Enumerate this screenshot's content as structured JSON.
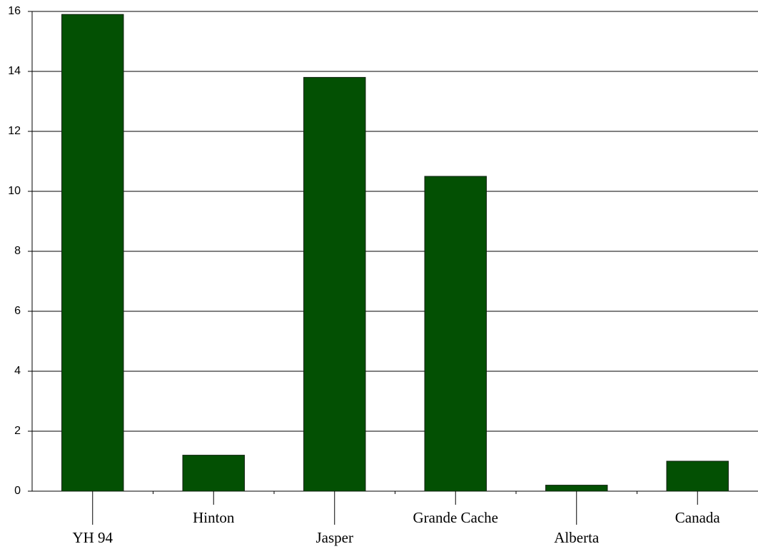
{
  "chart_data": {
    "type": "bar",
    "categories": [
      "YH 94",
      "Hinton",
      "Jasper",
      "Grande Cache",
      "Alberta",
      "Canada"
    ],
    "values": [
      15.9,
      1.2,
      13.8,
      10.5,
      0.2,
      1.0
    ],
    "color": "#035003",
    "ylim": [
      0,
      16
    ],
    "yticks": [
      0,
      2,
      4,
      6,
      8,
      10,
      12,
      14,
      16
    ],
    "grid": true
  }
}
